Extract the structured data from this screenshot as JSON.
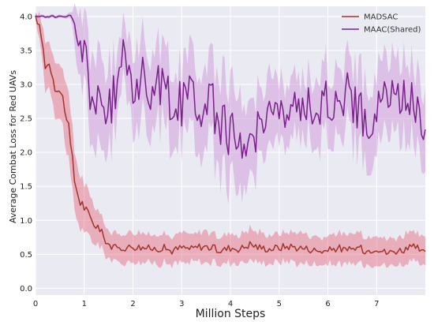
{
  "chart_data": {
    "type": "line",
    "title": "",
    "xlabel": "Million Steps",
    "ylabel": "Average Combat Loss for Red UAVs",
    "xlim": [
      0,
      8
    ],
    "ylim": [
      -0.1,
      4.15
    ],
    "xticks": [
      0,
      1,
      2,
      3,
      4,
      5,
      6,
      7
    ],
    "yticks": [
      0.0,
      0.5,
      1.0,
      1.5,
      2.0,
      2.5,
      3.0,
      3.5,
      4.0
    ],
    "xtick_labels": [
      "0",
      "1",
      "2",
      "3",
      "4",
      "5",
      "6",
      "7"
    ],
    "ytick_labels": [
      "0.0",
      "0.5",
      "1.0",
      "1.5",
      "2.0",
      "2.5",
      "3.0",
      "3.5",
      "4.0"
    ],
    "grid": true,
    "legend_position": "top-right",
    "background": "#eaeaf2",
    "series": [
      {
        "name": "MADSAC",
        "color": "#a0352b",
        "band_color": "#e8657a",
        "x": [
          0,
          0.1,
          0.2,
          0.3,
          0.4,
          0.5,
          0.6,
          0.7,
          0.8,
          0.9,
          1.0,
          1.1,
          1.2,
          1.3,
          1.4,
          1.5,
          1.6,
          1.7,
          1.8,
          1.9,
          2.0,
          2.2,
          2.4,
          2.6,
          2.8,
          3.0,
          3.2,
          3.4,
          3.6,
          3.8,
          4.0,
          4.2,
          4.4,
          4.6,
          4.8,
          5.0,
          5.2,
          5.4,
          5.6,
          5.8,
          6.0,
          6.2,
          6.4,
          6.6,
          6.8,
          7.0,
          7.2,
          7.4,
          7.6,
          7.8,
          8.0
        ],
        "values": [
          4.0,
          3.8,
          3.3,
          3.3,
          3.0,
          2.9,
          2.7,
          2.2,
          1.6,
          1.3,
          1.2,
          1.05,
          0.95,
          0.9,
          0.75,
          0.65,
          0.6,
          0.58,
          0.6,
          0.6,
          0.62,
          0.6,
          0.58,
          0.6,
          0.55,
          0.6,
          0.58,
          0.62,
          0.6,
          0.55,
          0.6,
          0.58,
          0.65,
          0.6,
          0.58,
          0.6,
          0.62,
          0.6,
          0.58,
          0.55,
          0.55,
          0.6,
          0.55,
          0.6,
          0.55,
          0.6,
          0.52,
          0.55,
          0.58,
          0.6,
          0.5
        ],
        "spread": [
          0.05,
          0.2,
          0.3,
          0.3,
          0.35,
          0.35,
          0.4,
          0.45,
          0.4,
          0.35,
          0.3,
          0.28,
          0.25,
          0.22,
          0.2,
          0.18,
          0.18,
          0.18,
          0.18,
          0.18,
          0.2,
          0.18,
          0.18,
          0.2,
          0.18,
          0.2,
          0.18,
          0.2,
          0.2,
          0.18,
          0.2,
          0.18,
          0.2,
          0.2,
          0.18,
          0.2,
          0.2,
          0.2,
          0.18,
          0.18,
          0.18,
          0.2,
          0.18,
          0.2,
          0.18,
          0.2,
          0.18,
          0.18,
          0.2,
          0.2,
          0.18
        ]
      },
      {
        "name": "MAAC(Shared)",
        "color": "#7b1f8c",
        "band_color": "#cc8dd6",
        "x": [
          0,
          0.2,
          0.4,
          0.6,
          0.75,
          0.8,
          0.9,
          1.0,
          1.1,
          1.2,
          1.3,
          1.4,
          1.5,
          1.6,
          1.7,
          1.8,
          1.9,
          2.0,
          2.2,
          2.4,
          2.6,
          2.8,
          3.0,
          3.2,
          3.4,
          3.6,
          3.8,
          4.0,
          4.1,
          4.2,
          4.3,
          4.4,
          4.6,
          4.8,
          5.0,
          5.2,
          5.4,
          5.6,
          5.8,
          6.0,
          6.2,
          6.4,
          6.6,
          6.8,
          7.0,
          7.2,
          7.4,
          7.6,
          7.8,
          8.0
        ],
        "values": [
          4.0,
          4.0,
          4.0,
          4.0,
          4.0,
          3.75,
          3.5,
          3.6,
          3.0,
          2.8,
          2.6,
          2.55,
          2.6,
          2.8,
          3.1,
          3.45,
          3.2,
          3.0,
          3.1,
          2.9,
          3.0,
          2.75,
          2.7,
          3.0,
          2.6,
          2.7,
          2.5,
          2.3,
          2.1,
          2.0,
          2.25,
          2.1,
          2.45,
          2.7,
          2.5,
          2.6,
          2.65,
          2.75,
          2.55,
          2.8,
          2.7,
          2.9,
          2.65,
          2.4,
          2.6,
          2.9,
          2.75,
          2.85,
          2.7,
          2.45
        ],
        "spread": [
          0.02,
          0.02,
          0.02,
          0.02,
          0.05,
          0.3,
          0.4,
          0.45,
          0.55,
          0.6,
          0.6,
          0.6,
          0.55,
          0.5,
          0.4,
          0.35,
          0.45,
          0.5,
          0.5,
          0.5,
          0.5,
          0.5,
          0.5,
          0.5,
          0.5,
          0.55,
          0.6,
          0.6,
          0.6,
          0.6,
          0.5,
          0.5,
          0.45,
          0.45,
          0.4,
          0.4,
          0.4,
          0.4,
          0.45,
          0.45,
          0.45,
          0.45,
          0.5,
          0.5,
          0.5,
          0.5,
          0.5,
          0.5,
          0.5,
          0.5
        ]
      }
    ]
  }
}
